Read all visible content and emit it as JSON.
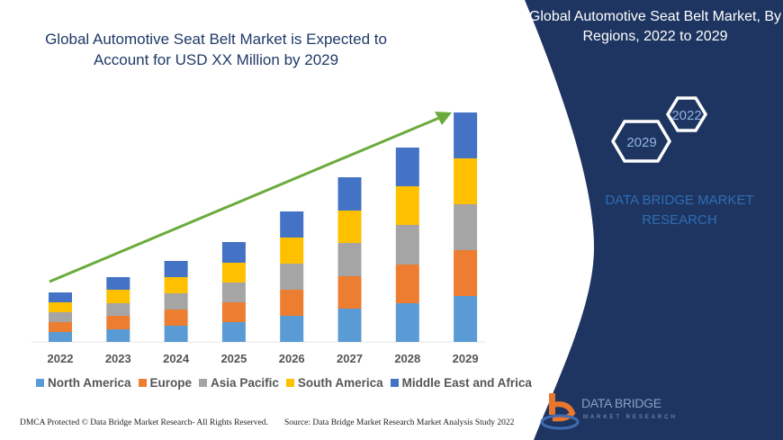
{
  "header": {
    "title": "Global Automotive Seat Belt Market is Expected to Account for USD XX Million by 2029",
    "right_title": "Global Automotive Seat Belt Market, By Regions, 2022 to 2029"
  },
  "hexagons": {
    "front": "2029",
    "back": "2022"
  },
  "brand_text": "DATA BRIDGE MARKET RESEARCH",
  "logo": {
    "name": "DATA BRIDGE",
    "tagline": "MARKET RESEARCH"
  },
  "footer": {
    "left": "DMCA Protected © Data Bridge Market Research- All Rights Reserved.",
    "right": "Source: Data Bridge Market Research Market Analysis Study 2022"
  },
  "colors": {
    "navy": "#1e3561",
    "arrow": "#6aab3c"
  },
  "chart_data": {
    "type": "bar",
    "stacked": true,
    "grid": false,
    "y_axis_shown": false,
    "legend_position": "bottom",
    "trend_arrow": true,
    "categories": [
      "2022",
      "2023",
      "2024",
      "2025",
      "2026",
      "2027",
      "2028",
      "2029"
    ],
    "series": [
      {
        "name": "North America",
        "color": "#5b9bd5",
        "values": [
          11,
          14,
          18,
          22,
          29,
          37,
          43,
          51
        ]
      },
      {
        "name": "Europe",
        "color": "#ed7d31",
        "values": [
          11,
          15,
          18,
          22,
          29,
          36,
          43,
          51
        ]
      },
      {
        "name": "Asia Pacific",
        "color": "#a5a5a5",
        "values": [
          11,
          14,
          18,
          22,
          29,
          37,
          44,
          51
        ]
      },
      {
        "name": "South America",
        "color": "#ffc000",
        "values": [
          11,
          15,
          18,
          22,
          29,
          36,
          43,
          51
        ]
      },
      {
        "name": "Middle East and Africa",
        "color": "#4472c4",
        "values": [
          11,
          14,
          18,
          23,
          29,
          37,
          43,
          51
        ]
      }
    ]
  }
}
